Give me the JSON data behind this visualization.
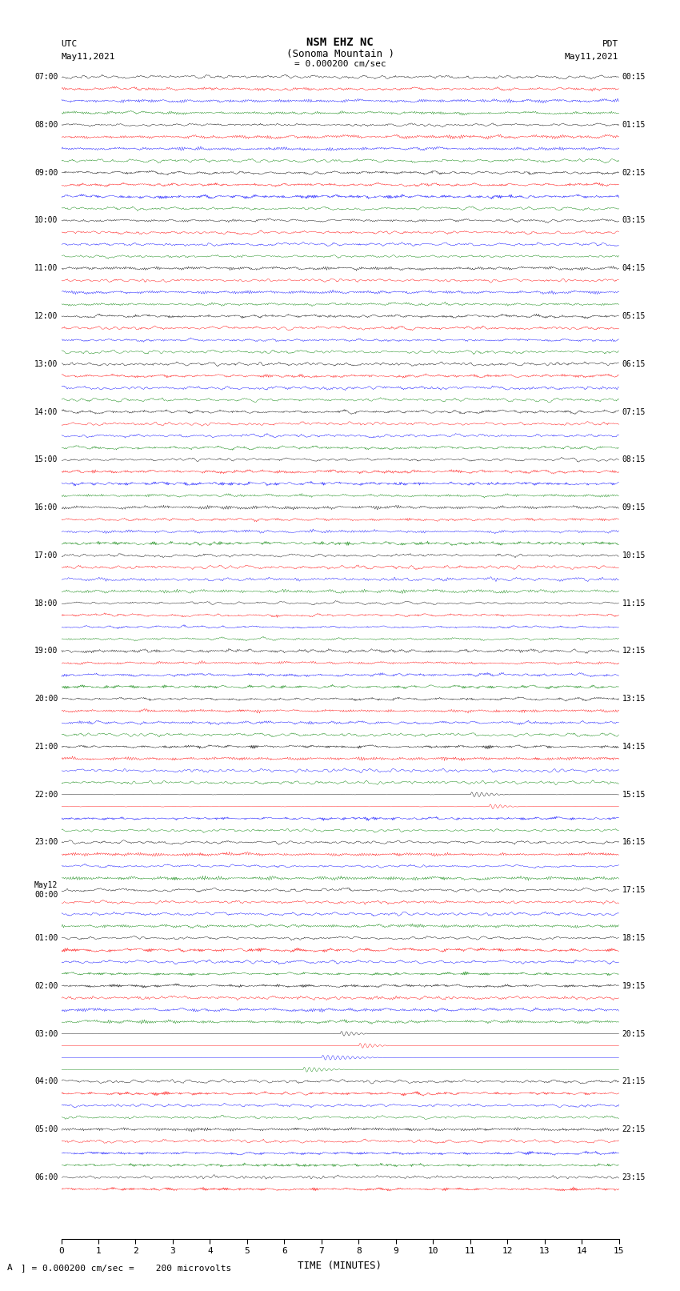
{
  "title_line1": "NSM EHZ NC",
  "title_line2": "(Sonoma Mountain )",
  "title_line3": "= 0.000200 cm/sec",
  "left_header_line1": "UTC",
  "left_header_line2": "May11,2021",
  "right_header_line1": "PDT",
  "right_header_line2": "May11,2021",
  "xlabel": "TIME (MINUTES)",
  "footer": "= 0.000200 cm/sec =    200 microvolts",
  "footer_label": "A",
  "x_min": 0,
  "x_max": 15,
  "x_ticks": [
    0,
    1,
    2,
    3,
    4,
    5,
    6,
    7,
    8,
    9,
    10,
    11,
    12,
    13,
    14,
    15
  ],
  "background_color": "#ffffff",
  "trace_colors": [
    "black",
    "red",
    "blue",
    "green"
  ],
  "utc_labels": [
    "07:00",
    "",
    "",
    "",
    "08:00",
    "",
    "",
    "",
    "09:00",
    "",
    "",
    "",
    "10:00",
    "",
    "",
    "",
    "11:00",
    "",
    "",
    "",
    "12:00",
    "",
    "",
    "",
    "13:00",
    "",
    "",
    "",
    "14:00",
    "",
    "",
    "",
    "15:00",
    "",
    "",
    "",
    "16:00",
    "",
    "",
    "",
    "17:00",
    "",
    "",
    "",
    "18:00",
    "",
    "",
    "",
    "19:00",
    "",
    "",
    "",
    "20:00",
    "",
    "",
    "",
    "21:00",
    "",
    "",
    "",
    "22:00",
    "",
    "",
    "",
    "23:00",
    "",
    "",
    "",
    "May12\n00:00",
    "",
    "",
    "",
    "01:00",
    "",
    "",
    "",
    "02:00",
    "",
    "",
    "",
    "03:00",
    "",
    "",
    "",
    "04:00",
    "",
    "",
    "",
    "05:00",
    "",
    "",
    "",
    "06:00",
    "",
    ""
  ],
  "pdt_labels": [
    "00:15",
    "",
    "",
    "",
    "01:15",
    "",
    "",
    "",
    "02:15",
    "",
    "",
    "",
    "03:15",
    "",
    "",
    "",
    "04:15",
    "",
    "",
    "",
    "05:15",
    "",
    "",
    "",
    "06:15",
    "",
    "",
    "",
    "07:15",
    "",
    "",
    "",
    "08:15",
    "",
    "",
    "",
    "09:15",
    "",
    "",
    "",
    "10:15",
    "",
    "",
    "",
    "11:15",
    "",
    "",
    "",
    "12:15",
    "",
    "",
    "",
    "13:15",
    "",
    "",
    "",
    "14:15",
    "",
    "",
    "",
    "15:15",
    "",
    "",
    "",
    "16:15",
    "",
    "",
    "",
    "17:15",
    "",
    "",
    "",
    "18:15",
    "",
    "",
    "",
    "19:15",
    "",
    "",
    "",
    "20:15",
    "",
    "",
    "",
    "21:15",
    "",
    "",
    "",
    "22:15",
    "",
    "",
    "",
    "23:15",
    "",
    ""
  ],
  "n_rows": 95,
  "n_cols": 4,
  "seed": 42,
  "fig_width": 8.5,
  "fig_height": 16.13,
  "dpi": 100
}
